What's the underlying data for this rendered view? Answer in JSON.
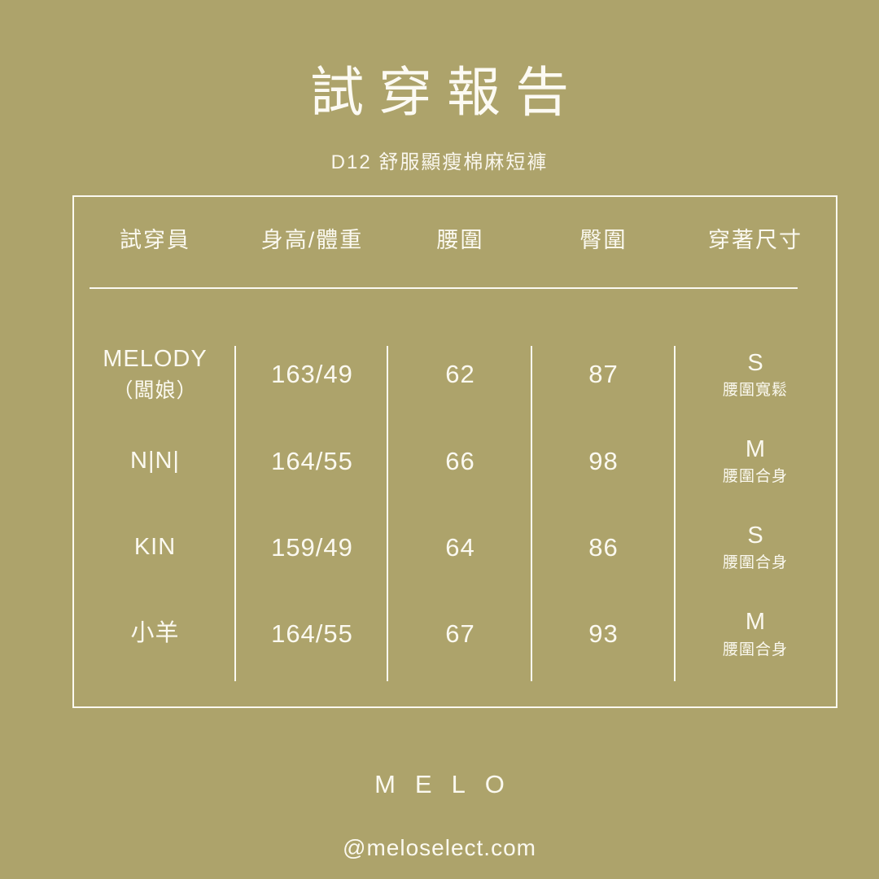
{
  "page": {
    "bg_color": "#ada36b",
    "text_color": "#fbf9f0"
  },
  "header": {
    "title": "試穿報告",
    "subtitle": "D12 舒服顯瘦棉麻短褲"
  },
  "table": {
    "columns": [
      "試穿員",
      "身高/體重",
      "腰圍",
      "臀圍",
      "穿著尺寸"
    ],
    "rows": [
      {
        "name": "MELODY",
        "name_note": "（闆娘）",
        "height_weight": "163/49",
        "waist": "62",
        "hip": "87",
        "size": "S",
        "fit_note": "腰圍寬鬆"
      },
      {
        "name": "N|N|",
        "name_note": "",
        "height_weight": "164/55",
        "waist": "66",
        "hip": "98",
        "size": "M",
        "fit_note": "腰圍合身"
      },
      {
        "name": "KIN",
        "name_note": "",
        "height_weight": "159/49",
        "waist": "64",
        "hip": "86",
        "size": "S",
        "fit_note": "腰圍合身"
      },
      {
        "name": "小羊",
        "name_note": "",
        "height_weight": "164/55",
        "waist": "67",
        "hip": "93",
        "size": "M",
        "fit_note": "腰圍合身"
      }
    ]
  },
  "footer": {
    "brand": "MELO",
    "handle": "@meloselect.com"
  }
}
